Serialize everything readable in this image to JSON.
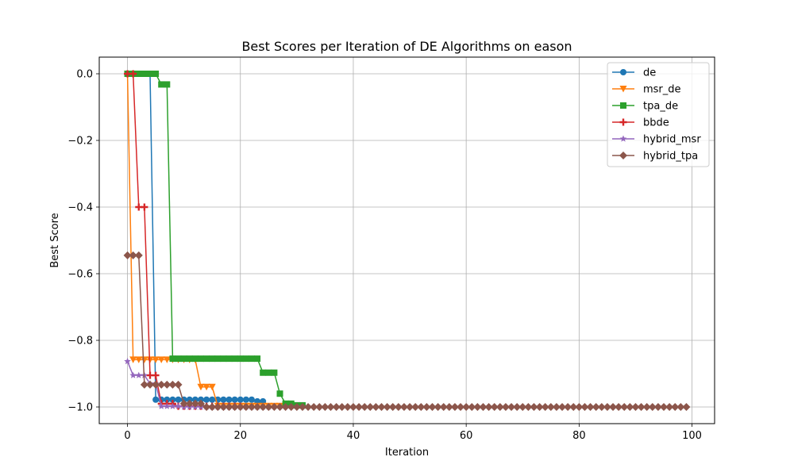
{
  "chart_data": {
    "type": "line",
    "title": "Best Scores per Iteration of DE Algorithms on eason",
    "xlabel": "Iteration",
    "ylabel": "Best Score",
    "xlim": [
      -5,
      104
    ],
    "ylim": [
      -1.05,
      0.05
    ],
    "xticks": [
      0,
      20,
      40,
      60,
      80,
      100
    ],
    "xtick_labels": [
      "0",
      "20",
      "40",
      "60",
      "80",
      "100"
    ],
    "yticks": [
      0.0,
      -0.2,
      -0.4,
      -0.6,
      -0.8,
      -1.0
    ],
    "ytick_labels": [
      "0.0",
      "−0.2",
      "−0.4",
      "−0.6",
      "−0.8",
      "−1.0"
    ],
    "grid": true,
    "legend_position": "top-right",
    "series": [
      {
        "name": "de",
        "color": "#1f77b4",
        "marker": "circle",
        "segments": [
          {
            "from": 0,
            "to": 4,
            "value": 0.0
          },
          {
            "from": 5,
            "to": 22,
            "value": -0.978
          },
          {
            "from": 23,
            "to": 24,
            "value": -0.983
          }
        ]
      },
      {
        "name": "msr_de",
        "color": "#ff7f0e",
        "marker": "triangle-down",
        "segments": [
          {
            "from": 0,
            "to": 0,
            "value": 0.0
          },
          {
            "from": 1,
            "to": 12,
            "value": -0.858
          },
          {
            "from": 13,
            "to": 15,
            "value": -0.94
          },
          {
            "from": 16,
            "to": 30,
            "value": -0.997
          }
        ]
      },
      {
        "name": "tpa_de",
        "color": "#2ca02c",
        "marker": "square",
        "segments": [
          {
            "from": 0,
            "to": 5,
            "value": 0.0
          },
          {
            "from": 6,
            "to": 7,
            "value": -0.032
          },
          {
            "from": 8,
            "to": 23,
            "value": -0.855
          },
          {
            "from": 24,
            "to": 26,
            "value": -0.897
          },
          {
            "from": 27,
            "to": 27,
            "value": -0.96
          },
          {
            "from": 28,
            "to": 29,
            "value": -0.99
          },
          {
            "from": 30,
            "to": 31,
            "value": -0.995
          }
        ]
      },
      {
        "name": "bbde",
        "color": "#d62728",
        "marker": "plus",
        "segments": [
          {
            "from": 0,
            "to": 1,
            "value": 0.0
          },
          {
            "from": 2,
            "to": 3,
            "value": -0.4
          },
          {
            "from": 4,
            "to": 5,
            "value": -0.905
          },
          {
            "from": 6,
            "to": 8,
            "value": -0.99
          },
          {
            "from": 9,
            "to": 20,
            "value": -0.998
          }
        ]
      },
      {
        "name": "hybrid_msr",
        "color": "#9467bd",
        "marker": "star",
        "segments": [
          {
            "from": 0,
            "to": 0,
            "value": -0.863
          },
          {
            "from": 1,
            "to": 3,
            "value": -0.905
          },
          {
            "from": 4,
            "to": 5,
            "value": -0.93
          },
          {
            "from": 6,
            "to": 9,
            "value": -0.998
          },
          {
            "from": 10,
            "to": 25,
            "value": -1.0
          }
        ]
      },
      {
        "name": "hybrid_tpa",
        "color": "#8c564b",
        "marker": "diamond",
        "segments": [
          {
            "from": 0,
            "to": 2,
            "value": -0.545
          },
          {
            "from": 3,
            "to": 9,
            "value": -0.933
          },
          {
            "from": 10,
            "to": 13,
            "value": -0.99
          },
          {
            "from": 14,
            "to": 99,
            "value": -1.0
          }
        ]
      }
    ]
  }
}
